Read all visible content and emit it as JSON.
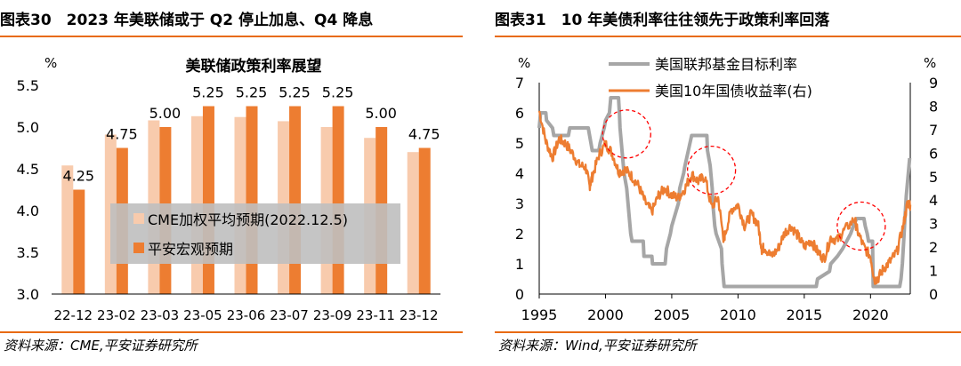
{
  "left": {
    "header": "图表30　2023 年美联储或于 Q2 停止加息、Q4 降息",
    "source": "资料来源：CME,平安证券研究所"
  },
  "right": {
    "header": "图表31　10 年美债利率往往领先于政策利率回落",
    "source": "资料来源：Wind,平安证券研究所"
  },
  "chart_data": [
    {
      "type": "bar",
      "title": "美联储政策利率展望",
      "y_unit": "%",
      "categories": [
        "22-12",
        "23-02",
        "23-03",
        "23-05",
        "23-06",
        "23-07",
        "23-09",
        "23-11",
        "23-12"
      ],
      "ylim": [
        3.0,
        5.5
      ],
      "yticks": [
        "3.0",
        "3.5",
        "4.0",
        "4.5",
        "5.0",
        "5.5"
      ],
      "series": [
        {
          "name": "CME加权平均预期(2022.12.5)",
          "color": "#f8cbad",
          "values": [
            4.54,
            4.91,
            5.08,
            5.13,
            5.12,
            5.07,
            5.0,
            4.87,
            4.7
          ]
        },
        {
          "name": "平安宏观预期",
          "color": "#ed7d31",
          "values": [
            4.25,
            4.75,
            5.0,
            5.25,
            5.25,
            5.25,
            5.25,
            5.0,
            4.75
          ],
          "labels": [
            "4.25",
            "4.75",
            "5.00",
            "5.25",
            "5.25",
            "5.25",
            "5.25",
            "5.00",
            "4.75"
          ]
        }
      ],
      "legend": "center",
      "grid": false
    },
    {
      "type": "line",
      "y_unit_left": "%",
      "y_unit_right": "%",
      "xlim": [
        1995,
        2023
      ],
      "xticks": [
        "1995",
        "2000",
        "2005",
        "2010",
        "2015",
        "2020"
      ],
      "ylim_left": [
        0,
        7
      ],
      "yticks_left": [
        "0",
        "1",
        "2",
        "3",
        "4",
        "5",
        "6",
        "7"
      ],
      "ylim_right": [
        0,
        9
      ],
      "yticks_right": [
        "0",
        "1",
        "2",
        "3",
        "4",
        "5",
        "6",
        "7",
        "8",
        "9"
      ],
      "legend": "top",
      "series": [
        {
          "name": "美国联邦基金目标利率",
          "axis": "left",
          "color": "#a6a6a6",
          "x": [
            1995.0,
            1995.1,
            1995.5,
            1995.55,
            1996.0,
            1996.1,
            1997.2,
            1997.3,
            1998.7,
            1998.8,
            1998.9,
            1999.0,
            1999.5,
            1999.6,
            1999.9,
            2000.0,
            2000.3,
            2000.4,
            2000.5,
            2000.98,
            2001.05,
            2001.1,
            2001.2,
            2001.3,
            2001.4,
            2001.5,
            2001.6,
            2001.7,
            2001.8,
            2001.9,
            2002.0,
            2002.85,
            2002.9,
            2003.5,
            2003.55,
            2004.5,
            2004.6,
            2004.9,
            2005.0,
            2005.5,
            2005.6,
            2005.9,
            2006.0,
            2006.5,
            2007.65,
            2007.7,
            2007.8,
            2007.9,
            2008.05,
            2008.1,
            2008.25,
            2008.35,
            2008.75,
            2008.8,
            2008.95,
            2015.9,
            2016.0,
            2016.9,
            2017.0,
            2017.5,
            2017.9,
            2018.2,
            2018.5,
            2018.7,
            2018.95,
            2019.5,
            2019.6,
            2019.75,
            2019.85,
            2020.15,
            2020.2,
            2022.2,
            2022.3,
            2022.4,
            2022.5,
            2022.6,
            2022.7,
            2022.85,
            2022.95
          ],
          "y": [
            5.5,
            6.0,
            6.0,
            5.75,
            5.5,
            5.25,
            5.25,
            5.5,
            5.5,
            5.25,
            5.0,
            4.75,
            4.75,
            5.0,
            5.5,
            5.75,
            6.0,
            6.5,
            6.5,
            6.5,
            6.0,
            5.5,
            5.0,
            4.5,
            4.0,
            3.75,
            3.5,
            3.0,
            2.5,
            2.0,
            1.75,
            1.75,
            1.25,
            1.25,
            1.0,
            1.0,
            1.5,
            2.0,
            2.25,
            3.0,
            3.5,
            4.0,
            4.25,
            5.25,
            5.25,
            4.75,
            4.5,
            4.25,
            3.5,
            3.0,
            2.25,
            2.0,
            1.5,
            1.0,
            0.25,
            0.25,
            0.5,
            0.75,
            1.0,
            1.25,
            1.5,
            1.75,
            2.0,
            2.25,
            2.5,
            2.5,
            2.25,
            2.0,
            1.75,
            1.75,
            0.25,
            0.25,
            0.5,
            1.0,
            1.75,
            2.5,
            3.25,
            4.0,
            4.5
          ]
        },
        {
          "name": "美国10年国债收益率(右)",
          "axis": "right",
          "color": "#ed7d31",
          "x": [
            1995.0,
            1995.5,
            1996.0,
            1996.5,
            1997.0,
            1997.5,
            1998.0,
            1998.5,
            1998.8,
            1999.0,
            1999.5,
            2000.0,
            2000.5,
            2001.0,
            2001.5,
            2002.0,
            2002.5,
            2003.0,
            2003.5,
            2004.0,
            2004.5,
            2005.0,
            2005.5,
            2006.0,
            2006.5,
            2007.0,
            2007.5,
            2008.0,
            2008.5,
            2008.9,
            2009.0,
            2009.5,
            2010.0,
            2010.5,
            2011.0,
            2011.5,
            2011.8,
            2012.0,
            2012.5,
            2013.0,
            2013.5,
            2014.0,
            2014.5,
            2015.0,
            2015.5,
            2016.0,
            2016.5,
            2017.0,
            2017.5,
            2018.0,
            2018.8,
            2019.0,
            2019.5,
            2020.0,
            2020.3,
            2020.6,
            2021.0,
            2021.5,
            2022.0,
            2022.5,
            2022.8,
            2023.0
          ],
          "y": [
            7.8,
            6.5,
            5.8,
            6.6,
            6.4,
            6.0,
            5.5,
            5.4,
            4.6,
            5.0,
            5.9,
            6.4,
            6.0,
            5.2,
            5.3,
            5.0,
            4.6,
            3.9,
            3.5,
            4.2,
            4.5,
            4.2,
            4.1,
            4.5,
            5.1,
            4.8,
            5.0,
            3.7,
            4.1,
            2.4,
            2.5,
            3.6,
            3.8,
            2.9,
            3.4,
            3.0,
            1.9,
            2.0,
            1.6,
            1.9,
            2.6,
            2.9,
            2.5,
            2.0,
            2.3,
            1.8,
            1.5,
            2.4,
            2.3,
            2.7,
            3.2,
            2.7,
            2.0,
            1.6,
            0.6,
            0.7,
            1.1,
            1.4,
            1.8,
            3.0,
            3.9,
            3.8
          ]
        }
      ],
      "annotations": [
        "dashed-red-circle-2001",
        "dashed-red-circle-2008",
        "dashed-red-circle-2019"
      ]
    }
  ]
}
